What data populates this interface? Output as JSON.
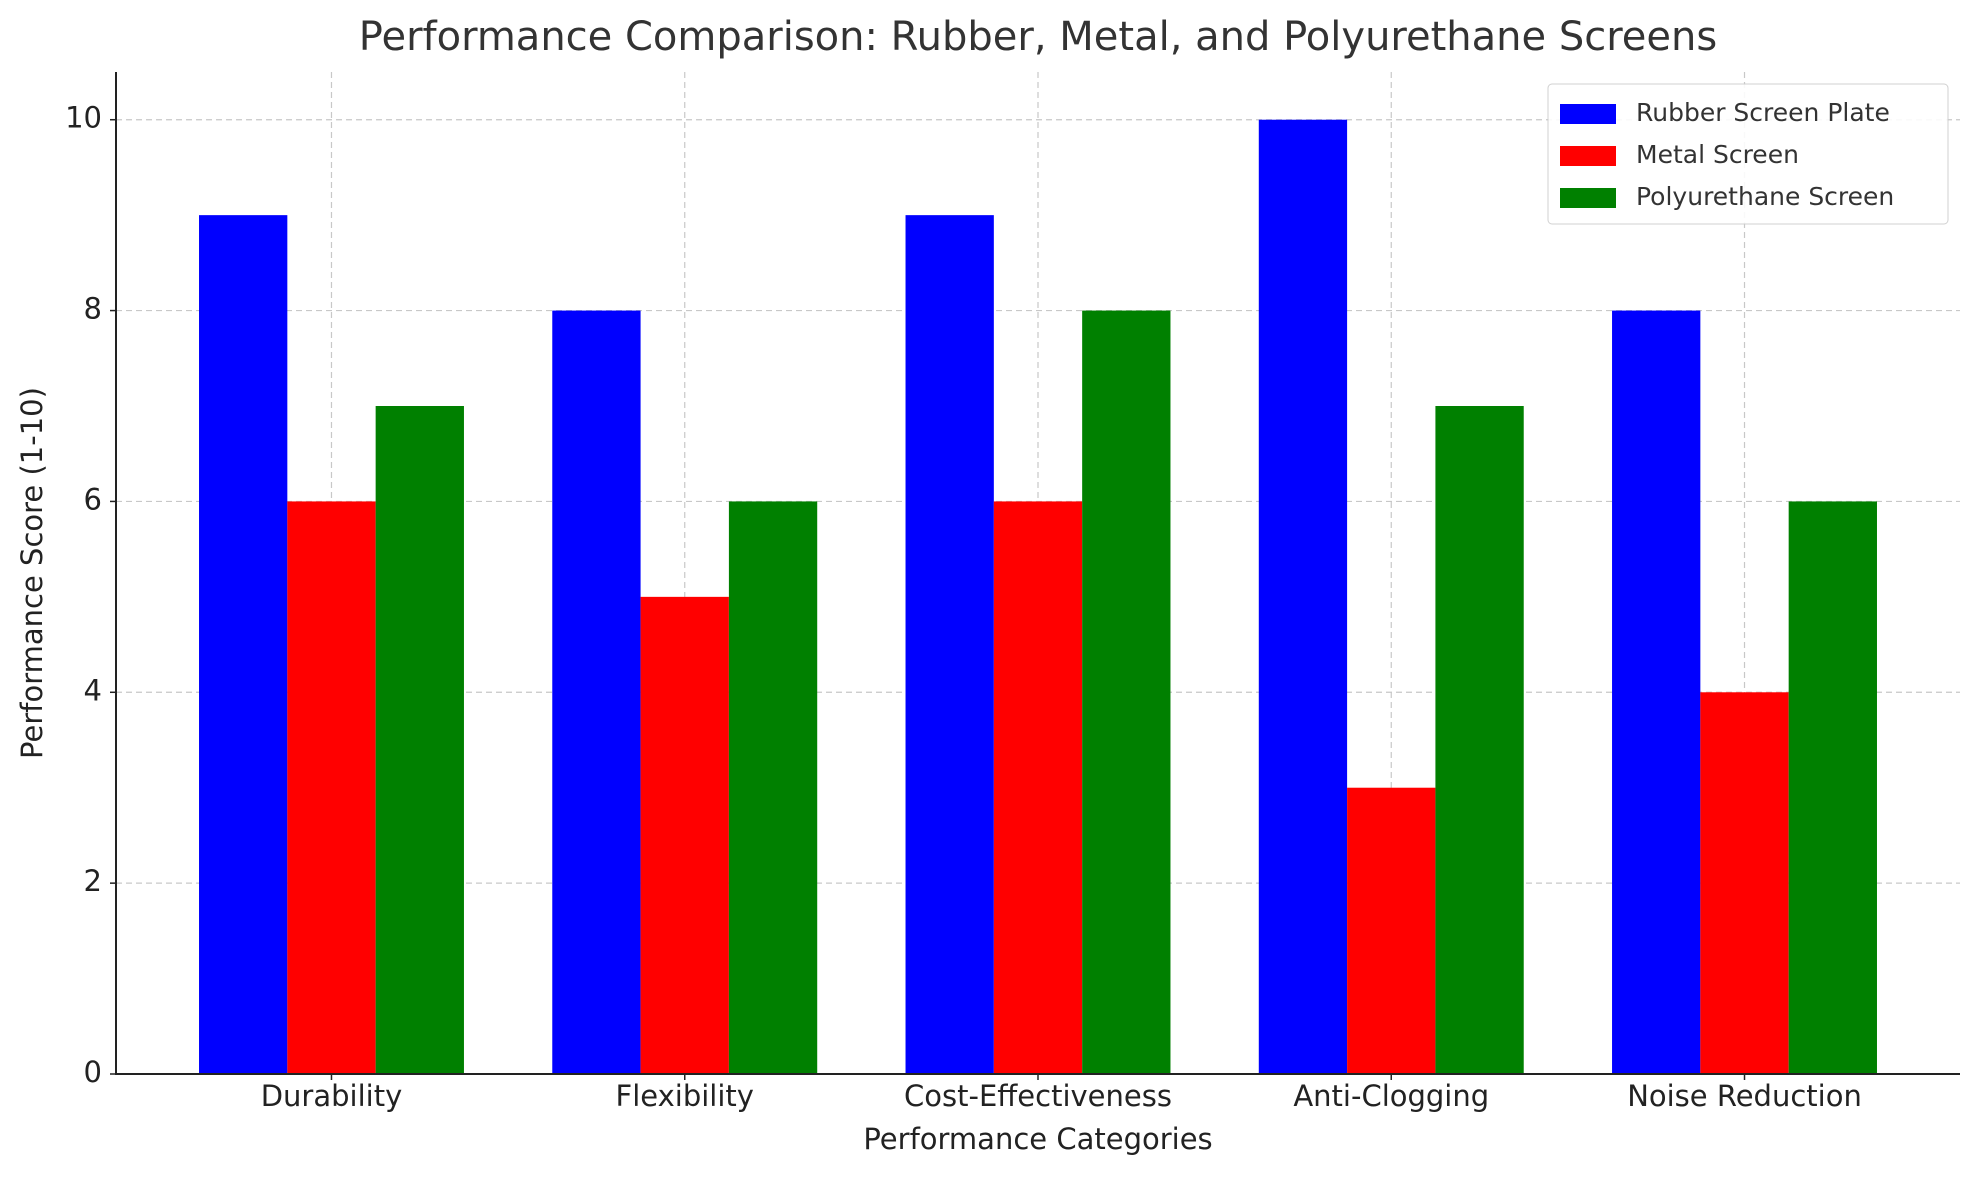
{
  "chart_data": {
    "type": "bar",
    "title": "Performance Comparison: Rubber, Metal, and Polyurethane Screens",
    "x_label": "Performance Categories",
    "y_label": "Performance Score (1-10)",
    "categories": [
      "Durability",
      "Flexibility",
      "Cost-Effectiveness",
      "Anti-Clogging",
      "Noise Reduction"
    ],
    "series": [
      {
        "name": "Rubber Screen Plate",
        "color": "#0000ff",
        "values": [
          9,
          8,
          9,
          10,
          8
        ]
      },
      {
        "name": "Metal Screen",
        "color": "#ff0000",
        "values": [
          6,
          5,
          6,
          3,
          4
        ]
      },
      {
        "name": "Polyurethane Screen",
        "color": "#008000",
        "values": [
          7,
          6,
          8,
          7,
          6
        ]
      }
    ],
    "ylim": [
      0,
      10.5
    ],
    "yticks": [
      0,
      2,
      4,
      6,
      8,
      10
    ],
    "grid": true,
    "legend": "upper right"
  }
}
